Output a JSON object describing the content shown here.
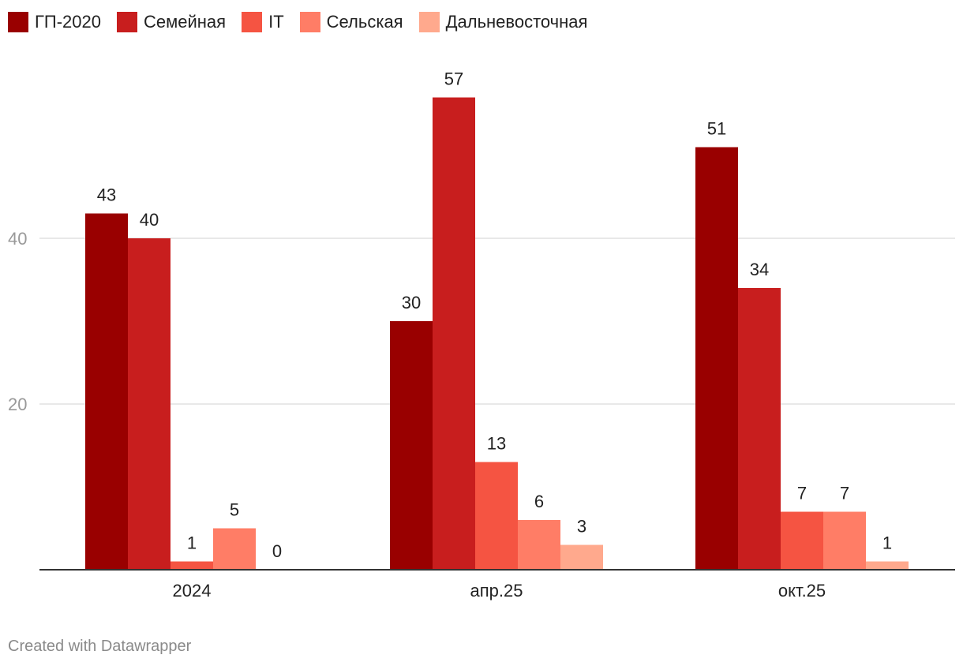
{
  "chart_data": {
    "type": "bar",
    "categories": [
      "2024",
      "апр.25",
      "окт.25"
    ],
    "series": [
      {
        "name": "ГП-2020",
        "color": "#990000",
        "values": [
          43,
          30,
          51
        ]
      },
      {
        "name": "Семейная",
        "color": "#c81e1e",
        "values": [
          40,
          57,
          34
        ]
      },
      {
        "name": "IT",
        "color": "#f55442",
        "values": [
          1,
          13,
          7
        ]
      },
      {
        "name": "Сельская",
        "color": "#ff7d66",
        "values": [
          5,
          6,
          7
        ]
      },
      {
        "name": "Дальневосточная",
        "color": "#ffa98d",
        "values": [
          0,
          3,
          1
        ]
      }
    ],
    "yticks": [
      20,
      40
    ],
    "ylim": [
      0,
      60
    ],
    "grid": true,
    "legend_position": "top-left",
    "data_labels": true
  },
  "footer": {
    "credit": "Created with Datawrapper"
  }
}
